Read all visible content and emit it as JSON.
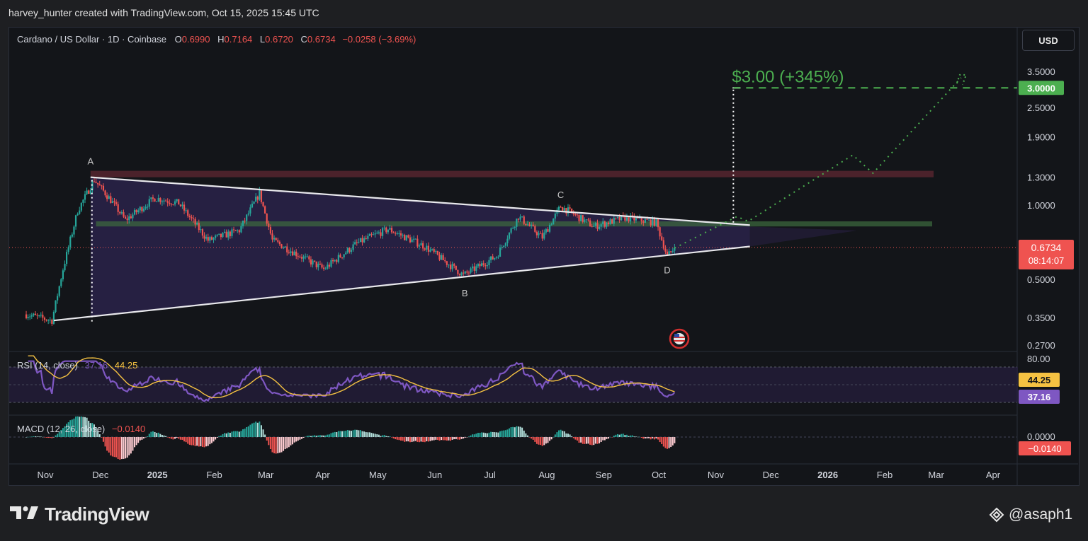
{
  "page": {
    "attribution": "harvey_hunter created with TradingView.com, Oct 15, 2025 15:45 UTC",
    "brand": "TradingView",
    "watermark": "@asaph1",
    "currency_button": "USD"
  },
  "legend": {
    "symbol": "Cardano / US Dollar · 1D · Coinbase",
    "o_label": "O",
    "o_value": "0.6990",
    "h_label": "H",
    "h_value": "0.7164",
    "l_label": "L",
    "l_value": "0.6720",
    "c_label": "C",
    "c_value": "0.6734",
    "change": "−0.0258 (−3.69%)"
  },
  "annotations": {
    "target_text": "$3.00 (+345%)",
    "points": [
      "A",
      "B",
      "C",
      "D"
    ]
  },
  "price_axis": {
    "ticks": [
      "3.5000",
      "2.5000",
      "1.9000",
      "1.3000",
      "1.0000",
      "0.5000",
      "0.3500",
      "0.2700"
    ],
    "target_tag": "3.0000",
    "last_price": "0.6734",
    "countdown": "08:14:07"
  },
  "rsi": {
    "label": "RSI (14, close)",
    "value_rsi": "37.16",
    "value_ma": "44.25",
    "upper": "80.00",
    "tag_ma": "44.25",
    "tag_rsi": "37.16"
  },
  "macd": {
    "label": "MACD (12, 26, close)",
    "value": "−0.0140",
    "zero": "0.0000",
    "tag": "−0.0140"
  },
  "time_axis": [
    "Nov",
    "Dec",
    "2025",
    "Feb",
    "Mar",
    "Apr",
    "May",
    "Jun",
    "Jul",
    "Aug",
    "Sep",
    "Oct",
    "Nov",
    "Dec",
    "2026",
    "Feb",
    "Mar",
    "Apr"
  ],
  "colors": {
    "up": "#26a69a",
    "down": "#ef5350",
    "target": "#4caf50",
    "rsi_line": "#7e57c2",
    "rsi_ma": "#f5c242",
    "triangle_fill": "#2e2450"
  },
  "chart_data": {
    "type": "candlestick",
    "scale": "log",
    "ylim": [
      0.26,
      3.6
    ],
    "price_keypoints": [
      {
        "date": "2024-10-27",
        "close": 0.36
      },
      {
        "date": "2024-11-10",
        "close": 0.34
      },
      {
        "date": "2024-11-16",
        "close": 0.55
      },
      {
        "date": "2024-11-24",
        "close": 0.95
      },
      {
        "date": "2024-12-03",
        "close": 1.27
      },
      {
        "date": "2024-12-12",
        "close": 1.05
      },
      {
        "date": "2024-12-20",
        "close": 0.87
      },
      {
        "date": "2025-01-05",
        "close": 1.07
      },
      {
        "date": "2025-01-18",
        "close": 1.02
      },
      {
        "date": "2025-02-03",
        "close": 0.72
      },
      {
        "date": "2025-02-20",
        "close": 0.79
      },
      {
        "date": "2025-03-03",
        "close": 1.12
      },
      {
        "date": "2025-03-10",
        "close": 0.72
      },
      {
        "date": "2025-04-07",
        "close": 0.55
      },
      {
        "date": "2025-04-25",
        "close": 0.7
      },
      {
        "date": "2025-05-12",
        "close": 0.8
      },
      {
        "date": "2025-06-01",
        "close": 0.68
      },
      {
        "date": "2025-06-22",
        "close": 0.52
      },
      {
        "date": "2025-07-10",
        "close": 0.62
      },
      {
        "date": "2025-07-22",
        "close": 0.9
      },
      {
        "date": "2025-08-04",
        "close": 0.74
      },
      {
        "date": "2025-08-14",
        "close": 0.99
      },
      {
        "date": "2025-09-01",
        "close": 0.82
      },
      {
        "date": "2025-09-18",
        "close": 0.89
      },
      {
        "date": "2025-10-05",
        "close": 0.85
      },
      {
        "date": "2025-10-11",
        "close": 0.62
      },
      {
        "date": "2025-10-15",
        "close": 0.6734
      }
    ],
    "forecast_path": [
      {
        "date": "2025-10-15",
        "price": 0.67
      },
      {
        "date": "2025-11-18",
        "price": 0.9
      },
      {
        "date": "2025-11-24",
        "price": 0.86
      },
      {
        "date": "2026-01-20",
        "price": 1.6
      },
      {
        "date": "2026-01-31",
        "price": 1.35
      },
      {
        "date": "2026-03-20",
        "price": 3.3
      }
    ],
    "target_price": 3.0,
    "resistance_zone": [
      1.3,
      1.38
    ],
    "support_zone": [
      0.82,
      0.86
    ],
    "triangle": {
      "upper": [
        [
          "2024-12-01",
          1.3
        ],
        [
          "2025-11-25",
          0.83
        ]
      ],
      "lower": [
        [
          "2024-11-11",
          0.34
        ],
        [
          "2025-11-25",
          0.68
        ]
      ]
    },
    "pattern_points": {
      "A": "2024-12-01",
      "B": "2025-06-22",
      "C": "2025-08-14",
      "D": "2025-10-11"
    }
  }
}
